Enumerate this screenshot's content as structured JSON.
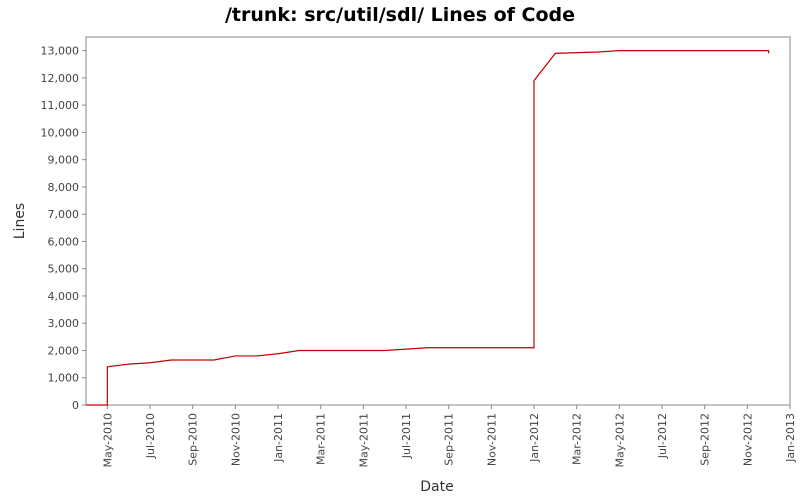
{
  "chart_data": {
    "type": "line",
    "title": "/trunk: src/util/sdl/ Lines of Code",
    "x_label": "Date",
    "y_label": "Lines",
    "x": [
      "2010-04",
      "2010-05",
      "2010-05",
      "2010-06",
      "2010-07",
      "2010-08",
      "2010-10",
      "2010-11",
      "2010-12",
      "2011-01",
      "2011-02",
      "2011-06",
      "2011-07",
      "2011-08",
      "2011-12",
      "2012-01",
      "2012-01",
      "2012-02",
      "2012-04",
      "2012-05",
      "2012-12",
      "2012-12"
    ],
    "series": [
      {
        "color": "#c00000",
        "values": [
          0,
          0,
          1400,
          1500,
          1550,
          1650,
          1650,
          1800,
          1800,
          1880,
          2000,
          2000,
          2050,
          2100,
          2100,
          2100,
          11900,
          12900,
          12950,
          13000,
          13000,
          12900
        ]
      }
    ],
    "xlim": [
      "2010-04",
      "2013-01"
    ],
    "xticks": [
      {
        "value": "2010-05",
        "label": "May-2010"
      },
      {
        "value": "2010-07",
        "label": "Jul-2010"
      },
      {
        "value": "2010-09",
        "label": "Sep-2010"
      },
      {
        "value": "2010-11",
        "label": "Nov-2010"
      },
      {
        "value": "2011-01",
        "label": "Jan-2011"
      },
      {
        "value": "2011-03",
        "label": "Mar-2011"
      },
      {
        "value": "2011-05",
        "label": "May-2011"
      },
      {
        "value": "2011-07",
        "label": "Jul-2011"
      },
      {
        "value": "2011-09",
        "label": "Sep-2011"
      },
      {
        "value": "2011-11",
        "label": "Nov-2011"
      },
      {
        "value": "2012-01",
        "label": "Jan-2012"
      },
      {
        "value": "2012-03",
        "label": "Mar-2012"
      },
      {
        "value": "2012-05",
        "label": "May-2012"
      },
      {
        "value": "2012-07",
        "label": "Jul-2012"
      },
      {
        "value": "2012-09",
        "label": "Sep-2012"
      },
      {
        "value": "2012-11",
        "label": "Nov-2012"
      },
      {
        "value": "2013-01",
        "label": "Jan-2013"
      }
    ],
    "ylim": [
      0,
      13500
    ],
    "yticks": [
      0,
      {
        "value": 1000,
        "label": "1,000"
      },
      {
        "value": 2000,
        "label": "2,000"
      },
      {
        "value": 3000,
        "label": "3,000"
      },
      {
        "value": 4000,
        "label": "4,000"
      },
      {
        "value": 5000,
        "label": "5,000"
      },
      {
        "value": 6000,
        "label": "6,000"
      },
      {
        "value": 7000,
        "label": "7,000"
      },
      {
        "value": 8000,
        "label": "8,000"
      },
      {
        "value": 9000,
        "label": "9,000"
      },
      {
        "value": 10000,
        "label": "10,000"
      },
      {
        "value": 11000,
        "label": "11,000"
      },
      {
        "value": 12000,
        "label": "12,000"
      },
      {
        "value": 13000,
        "label": "13,000"
      }
    ],
    "grid": false
  }
}
